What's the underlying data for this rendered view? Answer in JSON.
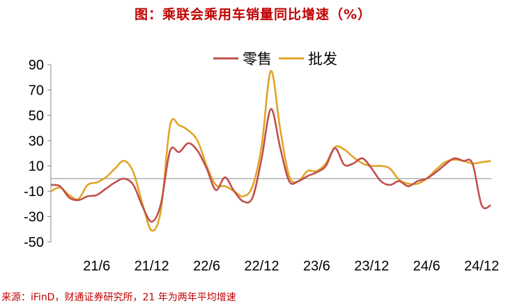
{
  "page": {
    "title": "图：乘联会乘用车销量同比增速（%）",
    "source": "来源：iFinD，财通证券研究所，21 年为两年平均增速"
  },
  "chart_data": {
    "type": "line",
    "title": "",
    "xlabel": "",
    "ylabel": "",
    "ylim": [
      -50,
      90
    ],
    "yticks": [
      -50,
      -30,
      -10,
      10,
      30,
      50,
      70,
      90
    ],
    "xticks": [
      "21/6",
      "21/12",
      "22/6",
      "22/12",
      "23/6",
      "23/12",
      "24/6",
      "24/12"
    ],
    "x": [
      "21/1",
      "21/2",
      "21/3",
      "21/4",
      "21/5",
      "21/6",
      "21/7",
      "21/8",
      "21/9",
      "21/10",
      "21/11",
      "21/12",
      "22/1",
      "22/2",
      "22/3",
      "22/4",
      "22/5",
      "22/6",
      "22/7",
      "22/8",
      "22/9",
      "22/10",
      "22/11",
      "22/12",
      "23/1",
      "23/2",
      "23/3",
      "23/4",
      "23/5",
      "23/6",
      "23/7",
      "23/8",
      "23/9",
      "23/10",
      "23/11",
      "23/12",
      "24/1",
      "24/2",
      "24/3",
      "24/4",
      "24/5",
      "24/6",
      "24/7",
      "24/8",
      "24/9",
      "24/10",
      "24/11",
      "24/12",
      "25/1"
    ],
    "legend_position": "top",
    "series": [
      {
        "name": "零售",
        "color": "#c0504d",
        "values": [
          -5,
          -6,
          -15,
          -17,
          -14,
          -13,
          -8,
          -3,
          0,
          -5,
          -22,
          -34,
          -20,
          22,
          21,
          28,
          22,
          8,
          -9,
          1,
          -10,
          -18,
          -15,
          16,
          55,
          25,
          -2,
          -2,
          2,
          5,
          10,
          24,
          11,
          12,
          16,
          8,
          -2,
          -5,
          -2,
          -6,
          -2,
          0,
          5,
          11,
          16,
          14,
          12,
          -21,
          -21
        ]
      },
      {
        "name": "批发",
        "color": "#e0a526",
        "values": [
          -10,
          -7,
          -13,
          -16,
          -5,
          -3,
          1,
          8,
          14,
          5,
          -20,
          -41,
          -25,
          42,
          42,
          38,
          30,
          10,
          -5,
          -6,
          -10,
          -14,
          -6,
          26,
          85,
          40,
          2,
          -2,
          6,
          6,
          12,
          25,
          23,
          17,
          12,
          10,
          10,
          8,
          -1,
          -4,
          -4,
          0,
          7,
          13,
          15,
          14,
          12,
          13,
          14
        ]
      }
    ]
  }
}
